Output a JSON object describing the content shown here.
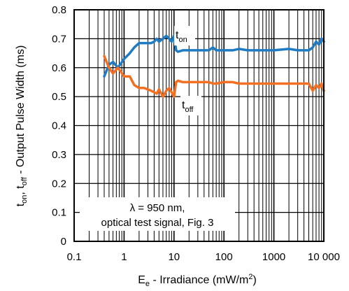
{
  "chart_data": {
    "type": "line",
    "x_scale": "log",
    "xlim": [
      0.1,
      10000
    ],
    "ylim": [
      0,
      0.8
    ],
    "grid": true,
    "x_ticks": [
      "0.1",
      "1",
      "10",
      "100",
      "1000",
      "10 000"
    ],
    "y_ticks": [
      "0",
      "0.1",
      "0.2",
      "0.3",
      "0.4",
      "0.5",
      "0.6",
      "0.7",
      "0.8"
    ],
    "series": [
      {
        "name": "t_on",
        "color": "#1f7bc2",
        "x": [
          0.4,
          0.5,
          0.6,
          0.75,
          1,
          1.3,
          1.6,
          2,
          2.5,
          3,
          3.5,
          4,
          4.5,
          5,
          6,
          7,
          8,
          9,
          10,
          11,
          12,
          15,
          20,
          30,
          50,
          60,
          70,
          100,
          150,
          200,
          300,
          500,
          1000,
          2000,
          3000,
          5000,
          6000,
          7000,
          8000,
          9000,
          10000
        ],
        "y": [
          0.57,
          0.61,
          0.62,
          0.6,
          0.63,
          0.65,
          0.67,
          0.685,
          0.685,
          0.685,
          0.685,
          0.69,
          0.7,
          0.69,
          0.7,
          0.71,
          0.7,
          0.69,
          0.71,
          0.66,
          0.655,
          0.66,
          0.66,
          0.66,
          0.66,
          0.67,
          0.66,
          0.66,
          0.66,
          0.665,
          0.66,
          0.66,
          0.66,
          0.665,
          0.66,
          0.66,
          0.67,
          0.69,
          0.68,
          0.7,
          0.69
        ]
      },
      {
        "name": "t_off",
        "color": "#f36f21",
        "x": [
          0.4,
          0.5,
          0.6,
          0.75,
          1,
          1.3,
          1.6,
          2,
          2.5,
          3,
          3.5,
          4,
          4.5,
          5,
          6,
          7,
          8,
          9,
          10,
          11,
          12,
          15,
          20,
          30,
          50,
          60,
          70,
          100,
          150,
          200,
          300,
          500,
          1000,
          2000,
          3000,
          5000,
          6000,
          7000,
          8000,
          9000,
          10000
        ],
        "y": [
          0.64,
          0.6,
          0.58,
          0.6,
          0.57,
          0.57,
          0.54,
          0.53,
          0.53,
          0.525,
          0.52,
          0.515,
          0.51,
          0.525,
          0.5,
          0.52,
          0.53,
          0.515,
          0.5,
          0.55,
          0.555,
          0.55,
          0.55,
          0.55,
          0.55,
          0.545,
          0.545,
          0.55,
          0.55,
          0.545,
          0.545,
          0.545,
          0.545,
          0.545,
          0.545,
          0.545,
          0.52,
          0.54,
          0.53,
          0.545,
          0.52
        ]
      }
    ],
    "labels": {
      "ton_main": "t",
      "ton_sub": "on",
      "toff_main": "t",
      "toff_sub": "off",
      "annotation_line1": "λ = 950 nm,",
      "annotation_line2": "optical test signal, Fig. 3",
      "xlabel_main": "E",
      "xlabel_sub": "e",
      "xlabel_rest": " - Irradiance (mW/m",
      "xlabel_sup": "2",
      "xlabel_end": ")",
      "ylabel_t1": "t",
      "ylabel_s1": "on",
      "ylabel_mid": ", t",
      "ylabel_s2": "off",
      "ylabel_rest": " - Output Pulse Width (ms)"
    }
  }
}
